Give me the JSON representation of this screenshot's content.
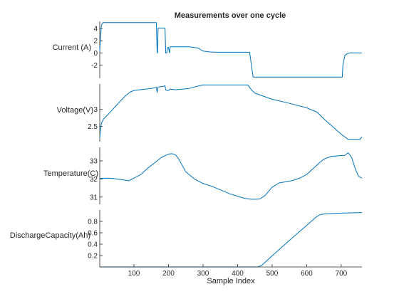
{
  "chart_data": {
    "type": "line",
    "title": "Measurements over one cycle",
    "xlabel": "Sample Index",
    "xlim": [
      1,
      760
    ],
    "x_ticks": [
      100,
      200,
      300,
      400,
      500,
      600,
      700
    ],
    "line_color": "#0072BD",
    "axis_color": "#262626",
    "grid": false,
    "series": [
      {
        "name": "Current (A)",
        "ylabel": "Current (A)",
        "ylim": [
          -4.2,
          5.2
        ],
        "y_ticks": [
          -2,
          0,
          2,
          4
        ],
        "x": [
          1,
          3,
          6,
          10,
          165,
          167,
          168,
          170,
          176,
          190,
          192,
          195,
          197,
          200,
          203,
          205,
          260,
          285,
          300,
          320,
          340,
          345,
          435,
          440,
          445,
          703,
          705,
          710,
          715,
          725,
          740,
          760
        ],
        "y": [
          0.3,
          2.5,
          4.6,
          5.0,
          5.0,
          0.0,
          0.0,
          4.1,
          4.1,
          4.1,
          0.0,
          0.0,
          0.9,
          0.9,
          0.0,
          1.0,
          1.0,
          0.8,
          0.3,
          0.15,
          0.1,
          0.1,
          0.1,
          -2.0,
          -4.0,
          -4.0,
          -2.0,
          -0.5,
          -0.2,
          0.0,
          0.0,
          0.0
        ]
      },
      {
        "name": "Voltage(V)",
        "ylabel": "Voltage(V)",
        "ylim": [
          2.05,
          3.75
        ],
        "y_ticks": [
          2.5,
          3
        ],
        "x": [
          1,
          3,
          6,
          12,
          25,
          50,
          75,
          90,
          100,
          150,
          165,
          167,
          170,
          185,
          190,
          192,
          195,
          200,
          205,
          220,
          260,
          290,
          300,
          430,
          440,
          450,
          500,
          550,
          600,
          630,
          650,
          700,
          720,
          745,
          755,
          760
        ],
        "y": [
          2.15,
          2.4,
          2.6,
          2.72,
          2.85,
          3.13,
          3.4,
          3.52,
          3.56,
          3.62,
          3.65,
          3.5,
          3.66,
          3.68,
          3.7,
          3.58,
          3.56,
          3.56,
          3.6,
          3.58,
          3.62,
          3.7,
          3.72,
          3.72,
          3.58,
          3.48,
          3.3,
          3.18,
          3.05,
          2.92,
          2.72,
          2.27,
          2.12,
          2.12,
          2.12,
          2.2
        ]
      },
      {
        "name": "Temperature(C)",
        "ylabel": "Temperature(C)",
        "ylim": [
          30.6,
          33.75
        ],
        "y_ticks": [
          31,
          32,
          33
        ],
        "x": [
          1,
          20,
          40,
          70,
          85,
          100,
          120,
          140,
          160,
          180,
          200,
          210,
          220,
          230,
          250,
          275,
          300,
          325,
          350,
          375,
          400,
          420,
          440,
          455,
          465,
          480,
          500,
          520,
          540,
          560,
          580,
          600,
          620,
          640,
          650,
          670,
          690,
          700,
          710,
          720,
          730,
          740,
          750,
          760
        ],
        "y": [
          32.03,
          32.05,
          32.03,
          31.95,
          31.9,
          32.05,
          32.25,
          32.6,
          32.9,
          33.2,
          33.38,
          33.4,
          33.35,
          33.1,
          32.4,
          32.0,
          31.75,
          31.6,
          31.4,
          31.2,
          31.05,
          30.93,
          30.88,
          30.88,
          30.9,
          31.1,
          31.55,
          31.78,
          31.85,
          31.92,
          32.05,
          32.25,
          32.6,
          32.95,
          33.1,
          33.25,
          33.28,
          33.3,
          33.3,
          33.45,
          33.2,
          32.6,
          32.15,
          32.05
        ]
      },
      {
        "name": "DischargeCapacity(Ah)",
        "ylabel": "DischargeCapacity(Ah)",
        "ylim": [
          0,
          1.0
        ],
        "y_ticks": [
          0.2,
          0.4,
          0.6,
          0.8
        ],
        "x": [
          1,
          450,
          460,
          470,
          510,
          560,
          600,
          630,
          640,
          650,
          660,
          700,
          760
        ],
        "y": [
          0.0,
          0.0,
          0.0,
          0.03,
          0.25,
          0.52,
          0.73,
          0.89,
          0.92,
          0.93,
          0.935,
          0.945,
          0.955
        ]
      }
    ]
  }
}
